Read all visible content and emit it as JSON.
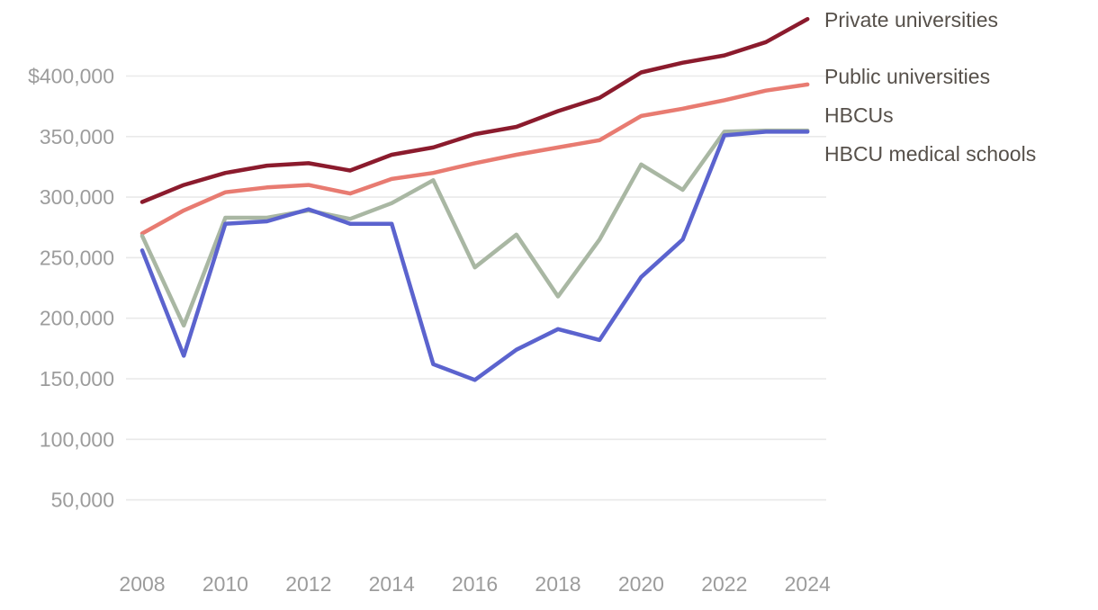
{
  "colors": {
    "background": "#ffffff",
    "grid": "#e9e9e9",
    "axis_text": "#9c9c9c",
    "legend_text": "#56504a",
    "private": "#8b1b2d",
    "public": "#e87b71",
    "hbcu": "#a9b7a3",
    "hbcu_medical": "#5b63ce"
  },
  "chart_data": {
    "type": "line",
    "title": "",
    "xlabel": "",
    "ylabel": "",
    "grid": "horizontal-only",
    "legend_position": "right-edge-direct-labels",
    "x": [
      2008,
      2009,
      2010,
      2011,
      2012,
      2013,
      2014,
      2015,
      2016,
      2017,
      2018,
      2019,
      2020,
      2021,
      2022,
      2023,
      2024
    ],
    "xticks": [
      2008,
      2010,
      2012,
      2014,
      2016,
      2018,
      2020,
      2022,
      2024
    ],
    "ylim": [
      50000,
      400000
    ],
    "yticks": [
      {
        "value": 400000,
        "label": "$400,000"
      },
      {
        "value": 350000,
        "label": "350,000"
      },
      {
        "value": 300000,
        "label": "300,000"
      },
      {
        "value": 250000,
        "label": "250,000"
      },
      {
        "value": 200000,
        "label": "200,000"
      },
      {
        "value": 150000,
        "label": "150,000"
      },
      {
        "value": 100000,
        "label": "100,000"
      },
      {
        "value": 50000,
        "label": "50,000"
      }
    ],
    "series": [
      {
        "name": "Private universities",
        "color": "#8b1b2d",
        "values": [
          296000,
          310000,
          320000,
          326000,
          328000,
          322000,
          335000,
          341000,
          352000,
          358000,
          371000,
          382000,
          403000,
          411000,
          417000,
          428000,
          447000
        ]
      },
      {
        "name": "Public universities",
        "color": "#e87b71",
        "values": [
          270000,
          289000,
          304000,
          308000,
          310000,
          303000,
          315000,
          320000,
          328000,
          335000,
          341000,
          347000,
          367000,
          373000,
          380000,
          388000,
          393000
        ]
      },
      {
        "name": "HBCUs",
        "color": "#a9b7a3",
        "values": [
          268000,
          194000,
          283000,
          283000,
          289000,
          282000,
          295000,
          314000,
          242000,
          269000,
          218000,
          265000,
          327000,
          306000,
          354000,
          355000,
          355000
        ]
      },
      {
        "name": "HBCU medical schools",
        "color": "#5b63ce",
        "values": [
          256000,
          169000,
          278000,
          280000,
          290000,
          278000,
          278000,
          162000,
          149000,
          174000,
          191000,
          182000,
          234000,
          265000,
          351000,
          354000,
          354000
        ]
      }
    ]
  }
}
